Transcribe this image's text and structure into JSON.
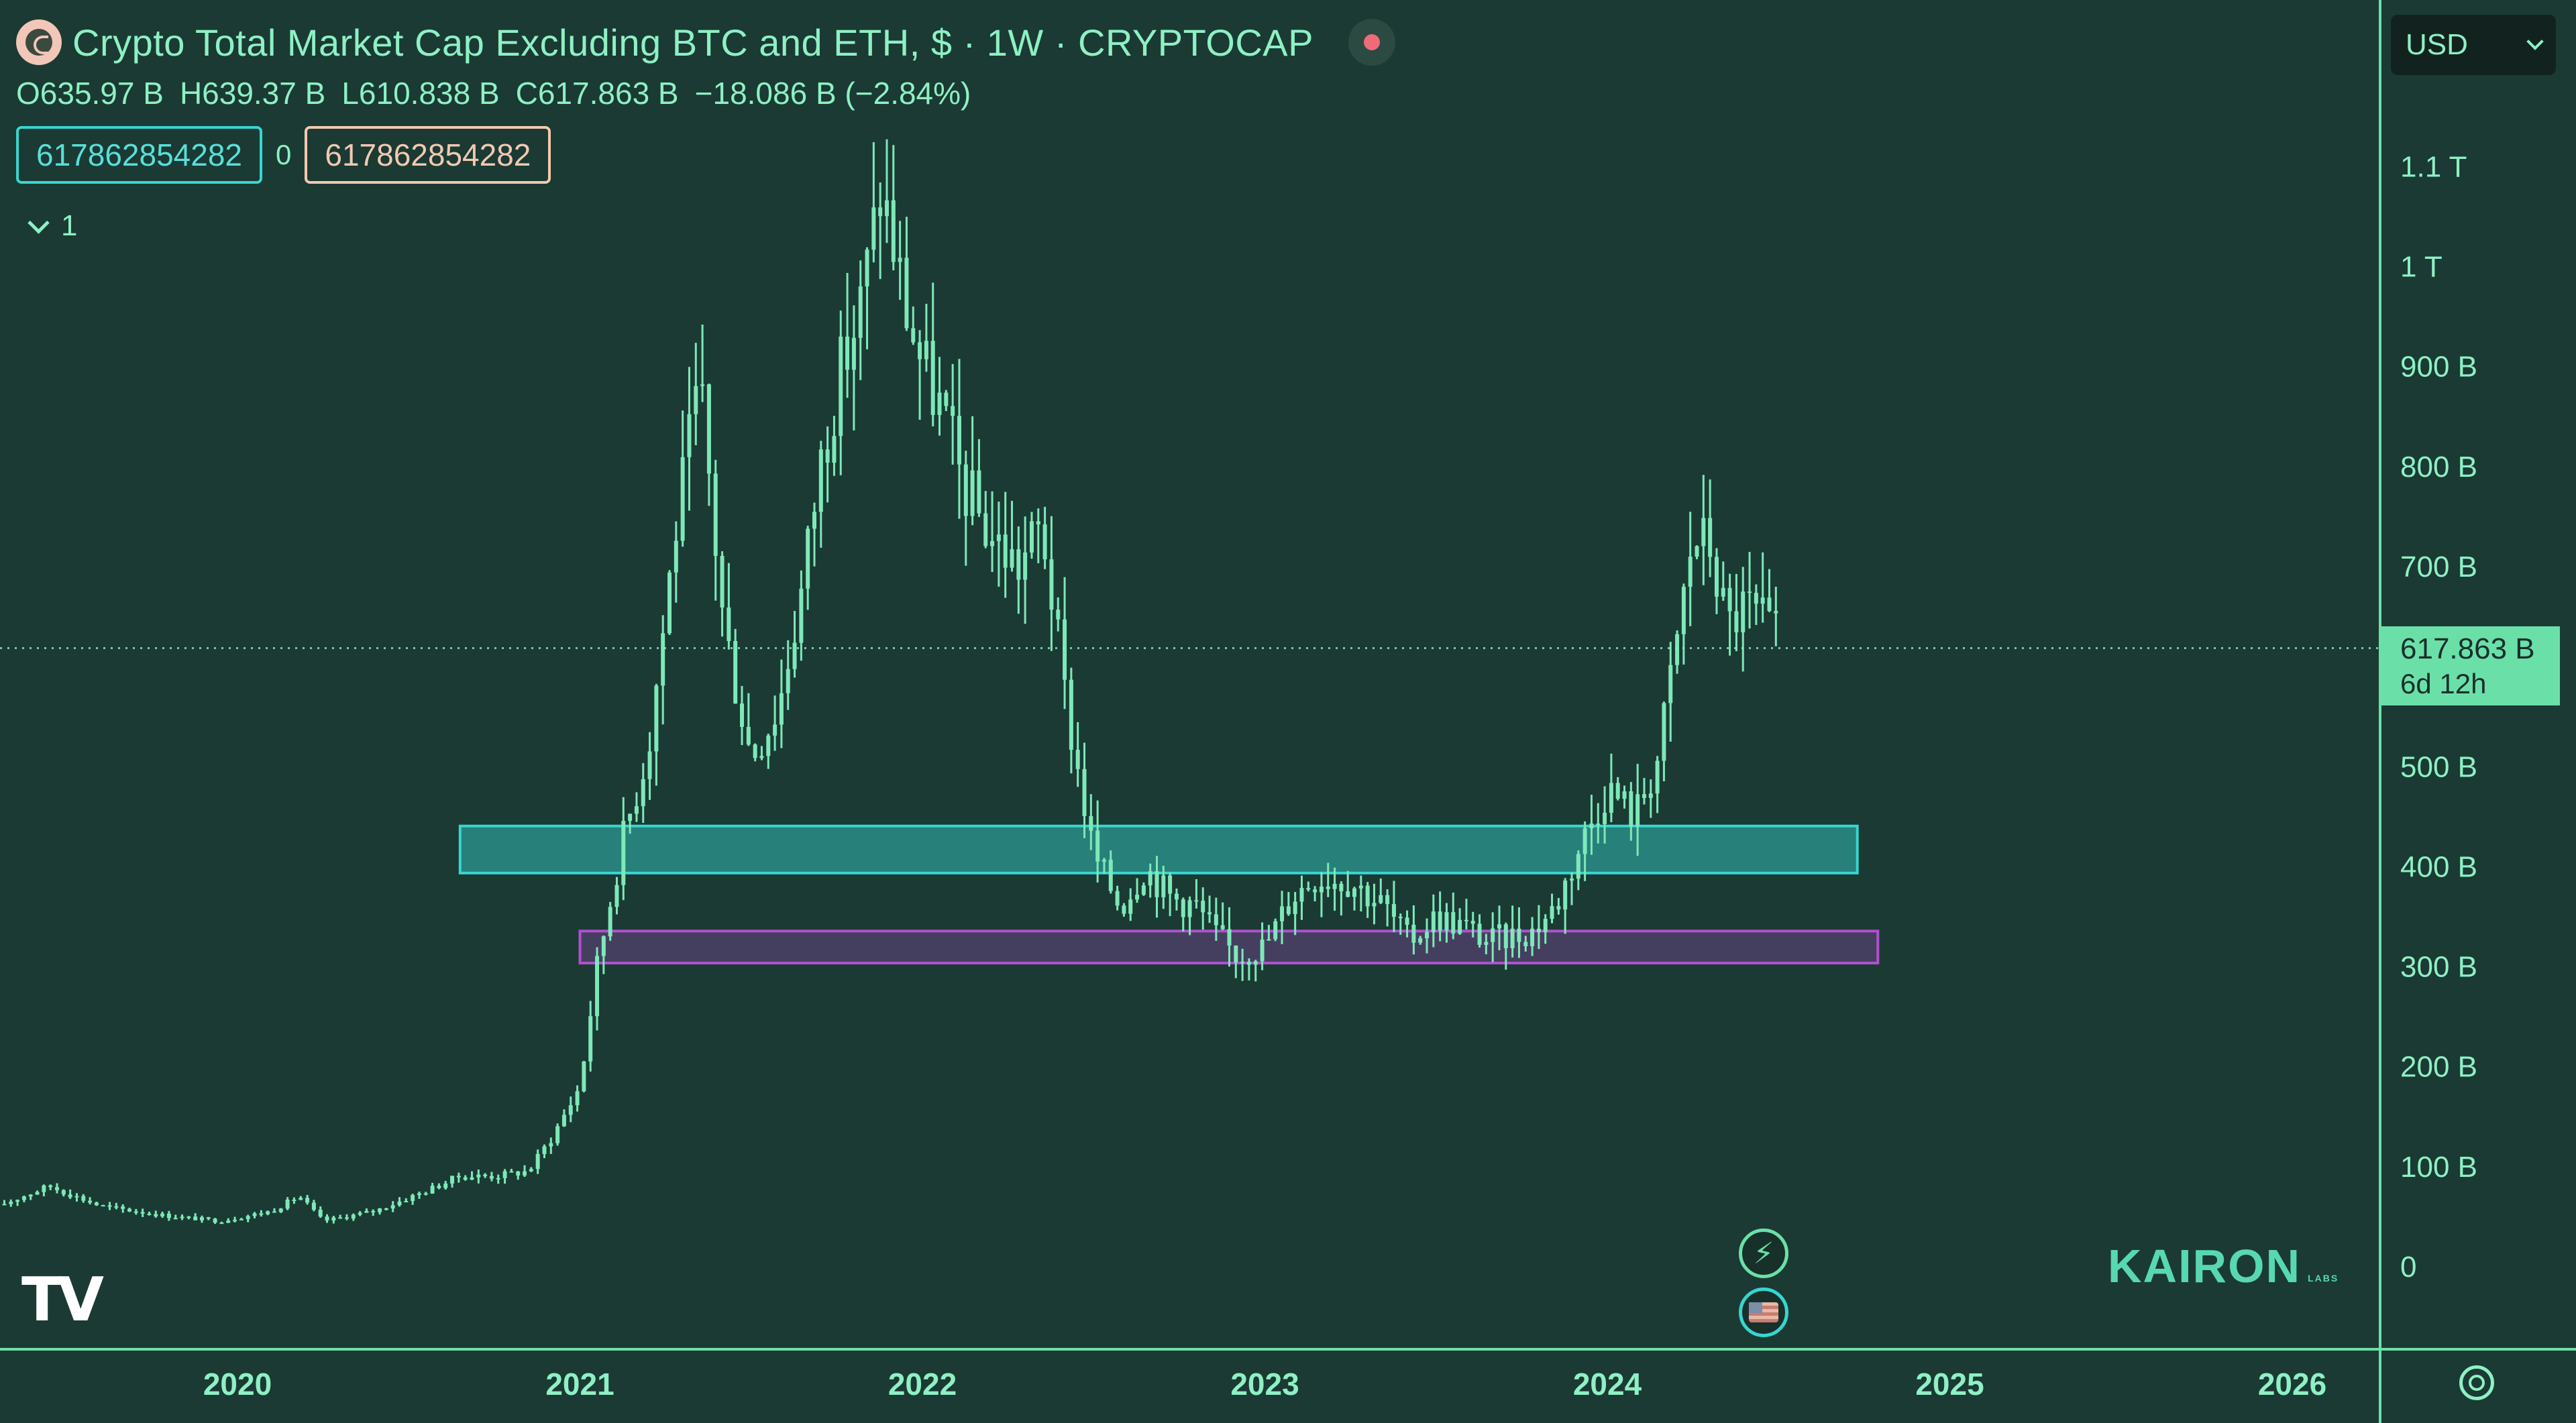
{
  "header": {
    "title": "Crypto Total Market Cap Excluding BTC and ETH, $ · 1W · CRYPTOCAP",
    "ohlc": {
      "open": "O635.97 B",
      "high": "H639.37 B",
      "low": "L610.838 B",
      "close": "C617.863 B",
      "change": "−18.086 B (−2.84%)"
    },
    "value_left": "617862854282",
    "value_mid": "0",
    "value_right": "617862854282",
    "collapsed_count": "1"
  },
  "currency_selector": {
    "value": "USD"
  },
  "price_tag": {
    "price": "617.863 B",
    "countdown": "6d 12h"
  },
  "branding": {
    "tradingview": "TV",
    "kairon": "KAIRON",
    "kairon_sub": "LABS"
  },
  "icons": {
    "logo": "cryptocap-logo-icon",
    "record": "record-dot-icon",
    "bolt": "lightning-icon",
    "flag": "us-flag-icon",
    "settings": "settings-icon"
  },
  "colors": {
    "background": "#1b3a34",
    "candle": "#7ee8b8",
    "zone_upper": "#37d6d0",
    "zone_lower": "#b24fd1",
    "price_tag": "#6ae0a8"
  },
  "chart_data": {
    "type": "candlestick",
    "title": "Crypto Total Market Cap Excluding BTC and ETH, $ · 1W · CRYPTOCAP",
    "xlabel": "",
    "ylabel": "",
    "xlim": [
      2019.3,
      2026.3
    ],
    "ylim": [
      0,
      1150
    ],
    "x_ticks": [
      "2020",
      "2021",
      "2022",
      "2023",
      "2024",
      "2025",
      "2026"
    ],
    "x_tick_values": [
      2020,
      2021,
      2022,
      2023,
      2024,
      2025,
      2026
    ],
    "y_ticks": [
      "0",
      "100 B",
      "200 B",
      "300 B",
      "400 B",
      "500 B",
      "700 B",
      "800 B",
      "900 B",
      "1 T",
      "1.1 T"
    ],
    "y_tick_values": [
      0,
      100,
      200,
      300,
      400,
      500,
      700,
      800,
      900,
      1000,
      1100
    ],
    "current_price": 617.863,
    "grid": false,
    "zones": [
      {
        "name": "",
        "x0": 2020.65,
        "x1": 2024.73,
        "y0": 393,
        "y1": 440,
        "color": "#37d6d0"
      },
      {
        "name": "",
        "x0": 2021.0,
        "x1": 2024.79,
        "y0": 303,
        "y1": 335,
        "color": "#b24fd1"
      }
    ],
    "keypoints": [
      [
        2019.3,
        60
      ],
      [
        2019.45,
        80
      ],
      [
        2019.6,
        60
      ],
      [
        2019.8,
        50
      ],
      [
        2019.95,
        45
      ],
      [
        2020.1,
        55
      ],
      [
        2020.18,
        70
      ],
      [
        2020.25,
        45
      ],
      [
        2020.4,
        55
      ],
      [
        2020.55,
        75
      ],
      [
        2020.65,
        90
      ],
      [
        2020.75,
        90
      ],
      [
        2020.85,
        95
      ],
      [
        2020.92,
        130
      ],
      [
        2021.0,
        180
      ],
      [
        2021.05,
        300
      ],
      [
        2021.12,
        420
      ],
      [
        2021.2,
        520
      ],
      [
        2021.28,
        740
      ],
      [
        2021.35,
        880
      ],
      [
        2021.42,
        640
      ],
      [
        2021.5,
        510
      ],
      [
        2021.58,
        560
      ],
      [
        2021.65,
        680
      ],
      [
        2021.7,
        800
      ],
      [
        2021.75,
        880
      ],
      [
        2021.82,
        960
      ],
      [
        2021.88,
        1080
      ],
      [
        2021.95,
        960
      ],
      [
        2022.0,
        900
      ],
      [
        2022.05,
        860
      ],
      [
        2022.12,
        780
      ],
      [
        2022.2,
        730
      ],
      [
        2022.28,
        700
      ],
      [
        2022.35,
        740
      ],
      [
        2022.42,
        560
      ],
      [
        2022.5,
        410
      ],
      [
        2022.58,
        360
      ],
      [
        2022.65,
        400
      ],
      [
        2022.72,
        370
      ],
      [
        2022.8,
        360
      ],
      [
        2022.86,
        330
      ],
      [
        2022.92,
        310
      ],
      [
        2023.0,
        320
      ],
      [
        2023.08,
        370
      ],
      [
        2023.15,
        390
      ],
      [
        2023.25,
        385
      ],
      [
        2023.35,
        360
      ],
      [
        2023.42,
        325
      ],
      [
        2023.5,
        350
      ],
      [
        2023.58,
        340
      ],
      [
        2023.65,
        325
      ],
      [
        2023.72,
        330
      ],
      [
        2023.78,
        335
      ],
      [
        2023.85,
        360
      ],
      [
        2023.92,
        420
      ],
      [
        2024.0,
        480
      ],
      [
        2024.08,
        450
      ],
      [
        2024.15,
        510
      ],
      [
        2024.2,
        620
      ],
      [
        2024.25,
        730
      ],
      [
        2024.3,
        720
      ],
      [
        2024.35,
        640
      ],
      [
        2024.4,
        660
      ],
      [
        2024.45,
        645
      ],
      [
        2024.48,
        630
      ],
      [
        2024.5,
        625
      ]
    ]
  }
}
